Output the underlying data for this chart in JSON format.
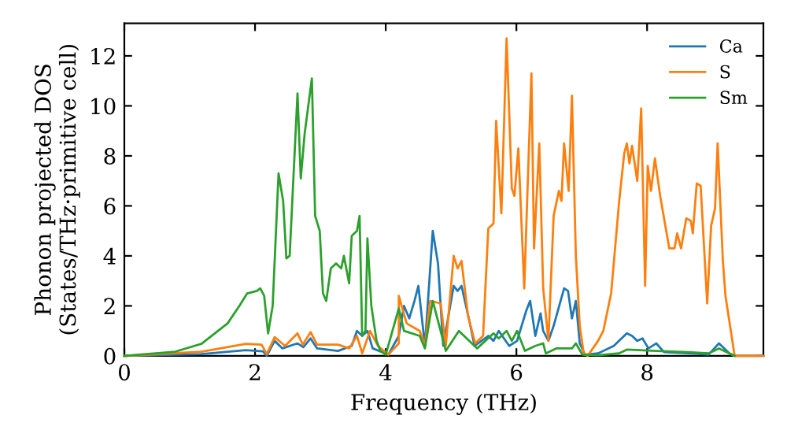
{
  "chart_data": {
    "type": "line",
    "xlabel": "Frequency (THz)",
    "ylabel": "Phonon projected DOS\n(States/THz·primitive cell)",
    "xlim": [
      0,
      9.78
    ],
    "ylim": [
      0,
      13.3
    ],
    "xticks": [
      0,
      2,
      4,
      6,
      8
    ],
    "yticks": [
      0,
      2,
      4,
      6,
      8,
      10,
      12
    ],
    "grid": false,
    "legend": "top right",
    "marker": "none",
    "line_style": "solid",
    "series": [
      {
        "name": "Ca",
        "color": "#1f77b4",
        "x": [
          0,
          1.18,
          1.86,
          2.12,
          2.18,
          2.3,
          2.42,
          2.65,
          2.74,
          2.85,
          2.95,
          3.27,
          3.48,
          3.56,
          3.64,
          3.72,
          3.8,
          4.04,
          4.2,
          4.28,
          4.36,
          4.44,
          4.5,
          4.6,
          4.72,
          4.8,
          4.88,
          5.04,
          5.1,
          5.16,
          5.28,
          5.36,
          5.57,
          5.65,
          5.73,
          5.89,
          6.01,
          6.15,
          6.21,
          6.29,
          6.37,
          6.41,
          6.49,
          6.57,
          6.73,
          6.79,
          6.85,
          6.91,
          6.97,
          7.05,
          7.25,
          7.49,
          7.69,
          7.77,
          7.85,
          7.93,
          8.02,
          8.14,
          8.26,
          8.7,
          8.94,
          9.1,
          9.26,
          9.34,
          9.78
        ],
        "values": [
          0,
          0.07,
          0.23,
          0.18,
          0,
          0.6,
          0.3,
          0.5,
          0.35,
          0.7,
          0.3,
          0.2,
          0.4,
          1.0,
          0.8,
          1.0,
          0.3,
          0.05,
          0.8,
          2.0,
          1.5,
          2.2,
          2.8,
          0.4,
          5.0,
          3.7,
          0.4,
          2.8,
          2.6,
          2.8,
          1.4,
          0.4,
          0.8,
          0.6,
          1.0,
          0.4,
          0.6,
          1.8,
          2.2,
          0.8,
          1.7,
          1.0,
          0.6,
          1.2,
          2.7,
          2.6,
          1.5,
          2.2,
          0.5,
          0.05,
          0.1,
          0.4,
          0.9,
          0.8,
          0.6,
          0.7,
          0.3,
          0.5,
          0.15,
          0.1,
          0.05,
          0.5,
          0.1,
          0.0,
          0.0
        ]
      },
      {
        "name": "S",
        "color": "#ff7f0e",
        "x": [
          0,
          1.18,
          1.86,
          2.1,
          2.18,
          2.3,
          2.46,
          2.65,
          2.73,
          2.85,
          2.95,
          3.27,
          3.44,
          3.56,
          3.64,
          3.76,
          3.88,
          4.04,
          4.2,
          4.2,
          4.32,
          4.52,
          4.6,
          4.68,
          4.84,
          4.92,
          5.04,
          5.1,
          5.16,
          5.26,
          5.37,
          5.49,
          5.57,
          5.65,
          5.69,
          5.77,
          5.85,
          5.93,
          5.97,
          6.03,
          6.12,
          6.23,
          6.27,
          6.35,
          6.41,
          6.49,
          6.57,
          6.65,
          6.69,
          6.73,
          6.8,
          6.85,
          6.91,
          6.97,
          7.03,
          7.09,
          7.25,
          7.33,
          7.45,
          7.57,
          7.65,
          7.69,
          7.73,
          7.77,
          7.85,
          7.91,
          7.97,
          8.01,
          8.06,
          8.12,
          8.2,
          8.34,
          8.42,
          8.46,
          8.52,
          8.6,
          8.67,
          8.7,
          8.76,
          8.82,
          8.92,
          8.98,
          9.04,
          9.08,
          9.16,
          9.2,
          9.34,
          9.78
        ],
        "values": [
          0,
          0.17,
          0.48,
          0.45,
          0.07,
          0.75,
          0.4,
          0.9,
          0.45,
          0.95,
          0.45,
          0.45,
          0.3,
          0.8,
          0.1,
          1.0,
          0.4,
          0.05,
          0.5,
          2.4,
          1.3,
          1.0,
          0.4,
          2.2,
          2.1,
          0.4,
          4.0,
          3.5,
          3.8,
          1.6,
          0.5,
          0.8,
          5.1,
          5.3,
          9.4,
          5.7,
          12.7,
          6.7,
          6.4,
          8.3,
          2.7,
          11.3,
          4.3,
          8.5,
          2.7,
          0.6,
          5.6,
          6.6,
          6.2,
          8.5,
          6.6,
          10.4,
          4.0,
          1.2,
          0.1,
          0,
          0.6,
          1.0,
          2.5,
          6.1,
          8.1,
          8.5,
          7.7,
          8.4,
          7.0,
          9.9,
          2.8,
          7.6,
          6.6,
          7.9,
          6.4,
          4.3,
          4.3,
          4.9,
          4.3,
          5.5,
          5.4,
          4.9,
          6.9,
          6.8,
          2.1,
          5.2,
          5.9,
          8.5,
          3.8,
          2.4,
          0,
          0
        ]
      },
      {
        "name": "Sm",
        "color": "#2ca02c",
        "x": [
          0,
          0.78,
          1.18,
          1.58,
          1.76,
          1.88,
          2.03,
          2.08,
          2.14,
          2.2,
          2.27,
          2.36,
          2.43,
          2.48,
          2.53,
          2.65,
          2.7,
          2.76,
          2.87,
          2.92,
          2.99,
          3.04,
          3.09,
          3.16,
          3.24,
          3.32,
          3.36,
          3.44,
          3.48,
          3.56,
          3.6,
          3.64,
          3.69,
          3.72,
          3.78,
          3.86,
          3.92,
          4.0,
          4.2,
          4.28,
          4.52,
          4.6,
          4.72,
          4.92,
          5.12,
          5.4,
          5.65,
          5.73,
          5.85,
          5.93,
          6.01,
          6.13,
          6.29,
          6.41,
          6.45,
          6.61,
          6.85,
          6.91,
          7.01,
          7.25,
          7.57,
          7.69,
          8.14,
          8.62,
          8.94,
          9.1,
          9.34
        ],
        "values": [
          0,
          0.17,
          0.48,
          1.3,
          2.0,
          2.5,
          2.6,
          2.7,
          2.4,
          0.9,
          2.0,
          7.3,
          6.2,
          3.9,
          4.0,
          10.5,
          7.1,
          8.9,
          11.1,
          5.6,
          5.0,
          2.5,
          2.2,
          3.5,
          3.7,
          3.5,
          4.0,
          2.9,
          4.8,
          5.0,
          5.6,
          0.8,
          1.0,
          4.7,
          2.0,
          0.6,
          0.2,
          0.05,
          1.9,
          1.0,
          0.8,
          0.3,
          2.2,
          0.2,
          1.0,
          0.3,
          0.9,
          0.7,
          1.0,
          0.6,
          1.0,
          0.2,
          0.4,
          0.5,
          0.1,
          0.3,
          0.3,
          0.5,
          0.05,
          0.03,
          0.1,
          0.25,
          0.2,
          0.15,
          0.1,
          0.3,
          0.0
        ]
      }
    ]
  }
}
